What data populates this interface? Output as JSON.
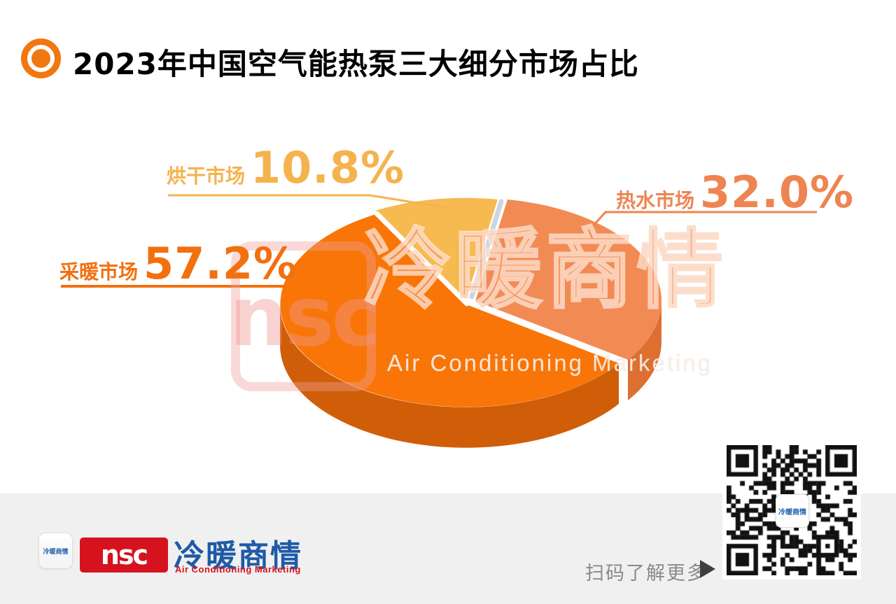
{
  "title": {
    "bullet_icon": "target-dot-icon",
    "text": "2023年中国空气能热泵三大细分市场占比"
  },
  "chart_data": {
    "type": "pie",
    "style": "3d-exploded-pie",
    "title": "2023年中国空气能热泵三大细分市场占比",
    "unit": "percent",
    "legend_position": "labels-with-leader-lines",
    "series": [
      {
        "label": "采暖市场",
        "value": 57.2,
        "display": "57.2%",
        "top_color": "#F97507",
        "side_color": "#D05E08",
        "label_color": "#F2700E"
      },
      {
        "label": "热水市场",
        "value": 32.0,
        "display": "32.0%",
        "top_color": "#F28B53",
        "side_color": "#DD6F30",
        "label_color": "#EE8451"
      },
      {
        "label": "烘干市场",
        "value": 10.8,
        "display": "10.8%",
        "top_color": "#F7BA51",
        "label_color": "#F5B34E"
      }
    ]
  },
  "watermark": {
    "logo_text": "nsc",
    "cn": "冷暖商情",
    "en": "Air Conditioning Marketing"
  },
  "footer": {
    "app_icon_text": "冷暖商情",
    "logo_nsc": "nsc",
    "logo_cn": "冷暖商情",
    "logo_en": "Air Conditioning Marketing",
    "scan_text": "扫码了解更多",
    "arrow_icon": "play-right-icon",
    "qr_center_text": "冷暖商情"
  },
  "colors": {
    "page_bg": "#FFFFFF",
    "footer_bg": "#F0F0F0",
    "title_text": "#000000",
    "bullet": "#F1770F",
    "logo_red": "#D6121F",
    "logo_blue": "#1E5AA8",
    "scan_text": "#8A8A8A",
    "arrow": "#3F3F3F",
    "gap_highlight": "#CBD6DF"
  }
}
